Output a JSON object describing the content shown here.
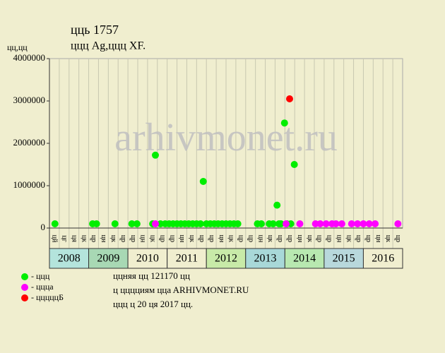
{
  "chart_data": {
    "type": "scatter",
    "title": "цць 1757",
    "subtitle": "ццц Ag,ццц XF.",
    "y_label": "цц,цц",
    "watermark": "arhivmonet.ru",
    "xlim": [
      2008,
      2017
    ],
    "ylim": [
      0,
      4000000
    ],
    "yticks": [
      0,
      1000000,
      2000000,
      3000000,
      4000000
    ],
    "categories": [
      "2008",
      "2009",
      "2010",
      "2011",
      "2012",
      "2013",
      "2014",
      "2015",
      "2016"
    ],
    "category_colors": [
      "#b4e4dc",
      "#a8d8b4",
      "#f0eecf",
      "#f0eecf",
      "#c8eaa8",
      "#a8d8d8",
      "#b8e8b0",
      "#b8d8dc",
      "#f0eecf"
    ],
    "period_labels": [
      "цй",
      "цг",
      "ця",
      "цк",
      "цр",
      "цн",
      "цк",
      "цр",
      "цр",
      "цн",
      "цк",
      "цр",
      "цр",
      "цн",
      "цк",
      "цр",
      "цр",
      "цн",
      "цк",
      "цр",
      "цр",
      "цн",
      "цк",
      "цр",
      "цр",
      "цн",
      "цк",
      "цр",
      "цр",
      "цн",
      "цк",
      "цр",
      "цр",
      "цн",
      "цк",
      "цр"
    ],
    "series": [
      {
        "name": "- ццц",
        "color": "#00ee00",
        "x": [
          2008.14,
          2009.1,
          2009.2,
          2009.67,
          2010.1,
          2010.23,
          2010.63,
          2010.7,
          2010.83,
          2010.95,
          2011.05,
          2011.15,
          2011.25,
          2011.35,
          2011.45,
          2011.55,
          2011.65,
          2011.75,
          2011.85,
          2011.92,
          2012.0,
          2012.1,
          2012.2,
          2012.3,
          2012.4,
          2012.5,
          2012.6,
          2012.7,
          2012.8,
          2013.3,
          2013.4,
          2013.6,
          2013.7,
          2013.8,
          2013.85,
          2013.9,
          2013.99,
          2014.05,
          2014.15,
          2014.24
        ],
        "values": [
          100000,
          100000,
          100000,
          100000,
          100000,
          100000,
          100000,
          1720000,
          100000,
          100000,
          100000,
          100000,
          100000,
          100000,
          100000,
          100000,
          100000,
          100000,
          100000,
          1100000,
          100000,
          100000,
          100000,
          100000,
          100000,
          100000,
          100000,
          100000,
          100000,
          100000,
          100000,
          100000,
          100000,
          540000,
          100000,
          100000,
          2480000,
          100000,
          100000,
          1500000
        ]
      },
      {
        "name": "- ццца",
        "color": "#ff00ff",
        "x": [
          2010.7,
          2014.03,
          2014.38,
          2014.78,
          2014.9,
          2015.05,
          2015.2,
          2015.3,
          2015.45,
          2015.7,
          2015.85,
          2016.0,
          2016.15,
          2016.3,
          2016.88
        ],
        "values": [
          100000,
          100000,
          100000,
          100000,
          100000,
          100000,
          100000,
          100000,
          100000,
          100000,
          100000,
          100000,
          100000,
          100000,
          100000
        ]
      },
      {
        "name": "- цццццБ",
        "color": "#ff0000",
        "x": [
          2014.12
        ],
        "values": [
          3050000
        ]
      }
    ],
    "notes": [
      "ццняя цц 121170 цц",
      "ц цццциям ццa ARHIVMONET.RU",
      "ццц ц 20 ця 2017 цц."
    ]
  }
}
